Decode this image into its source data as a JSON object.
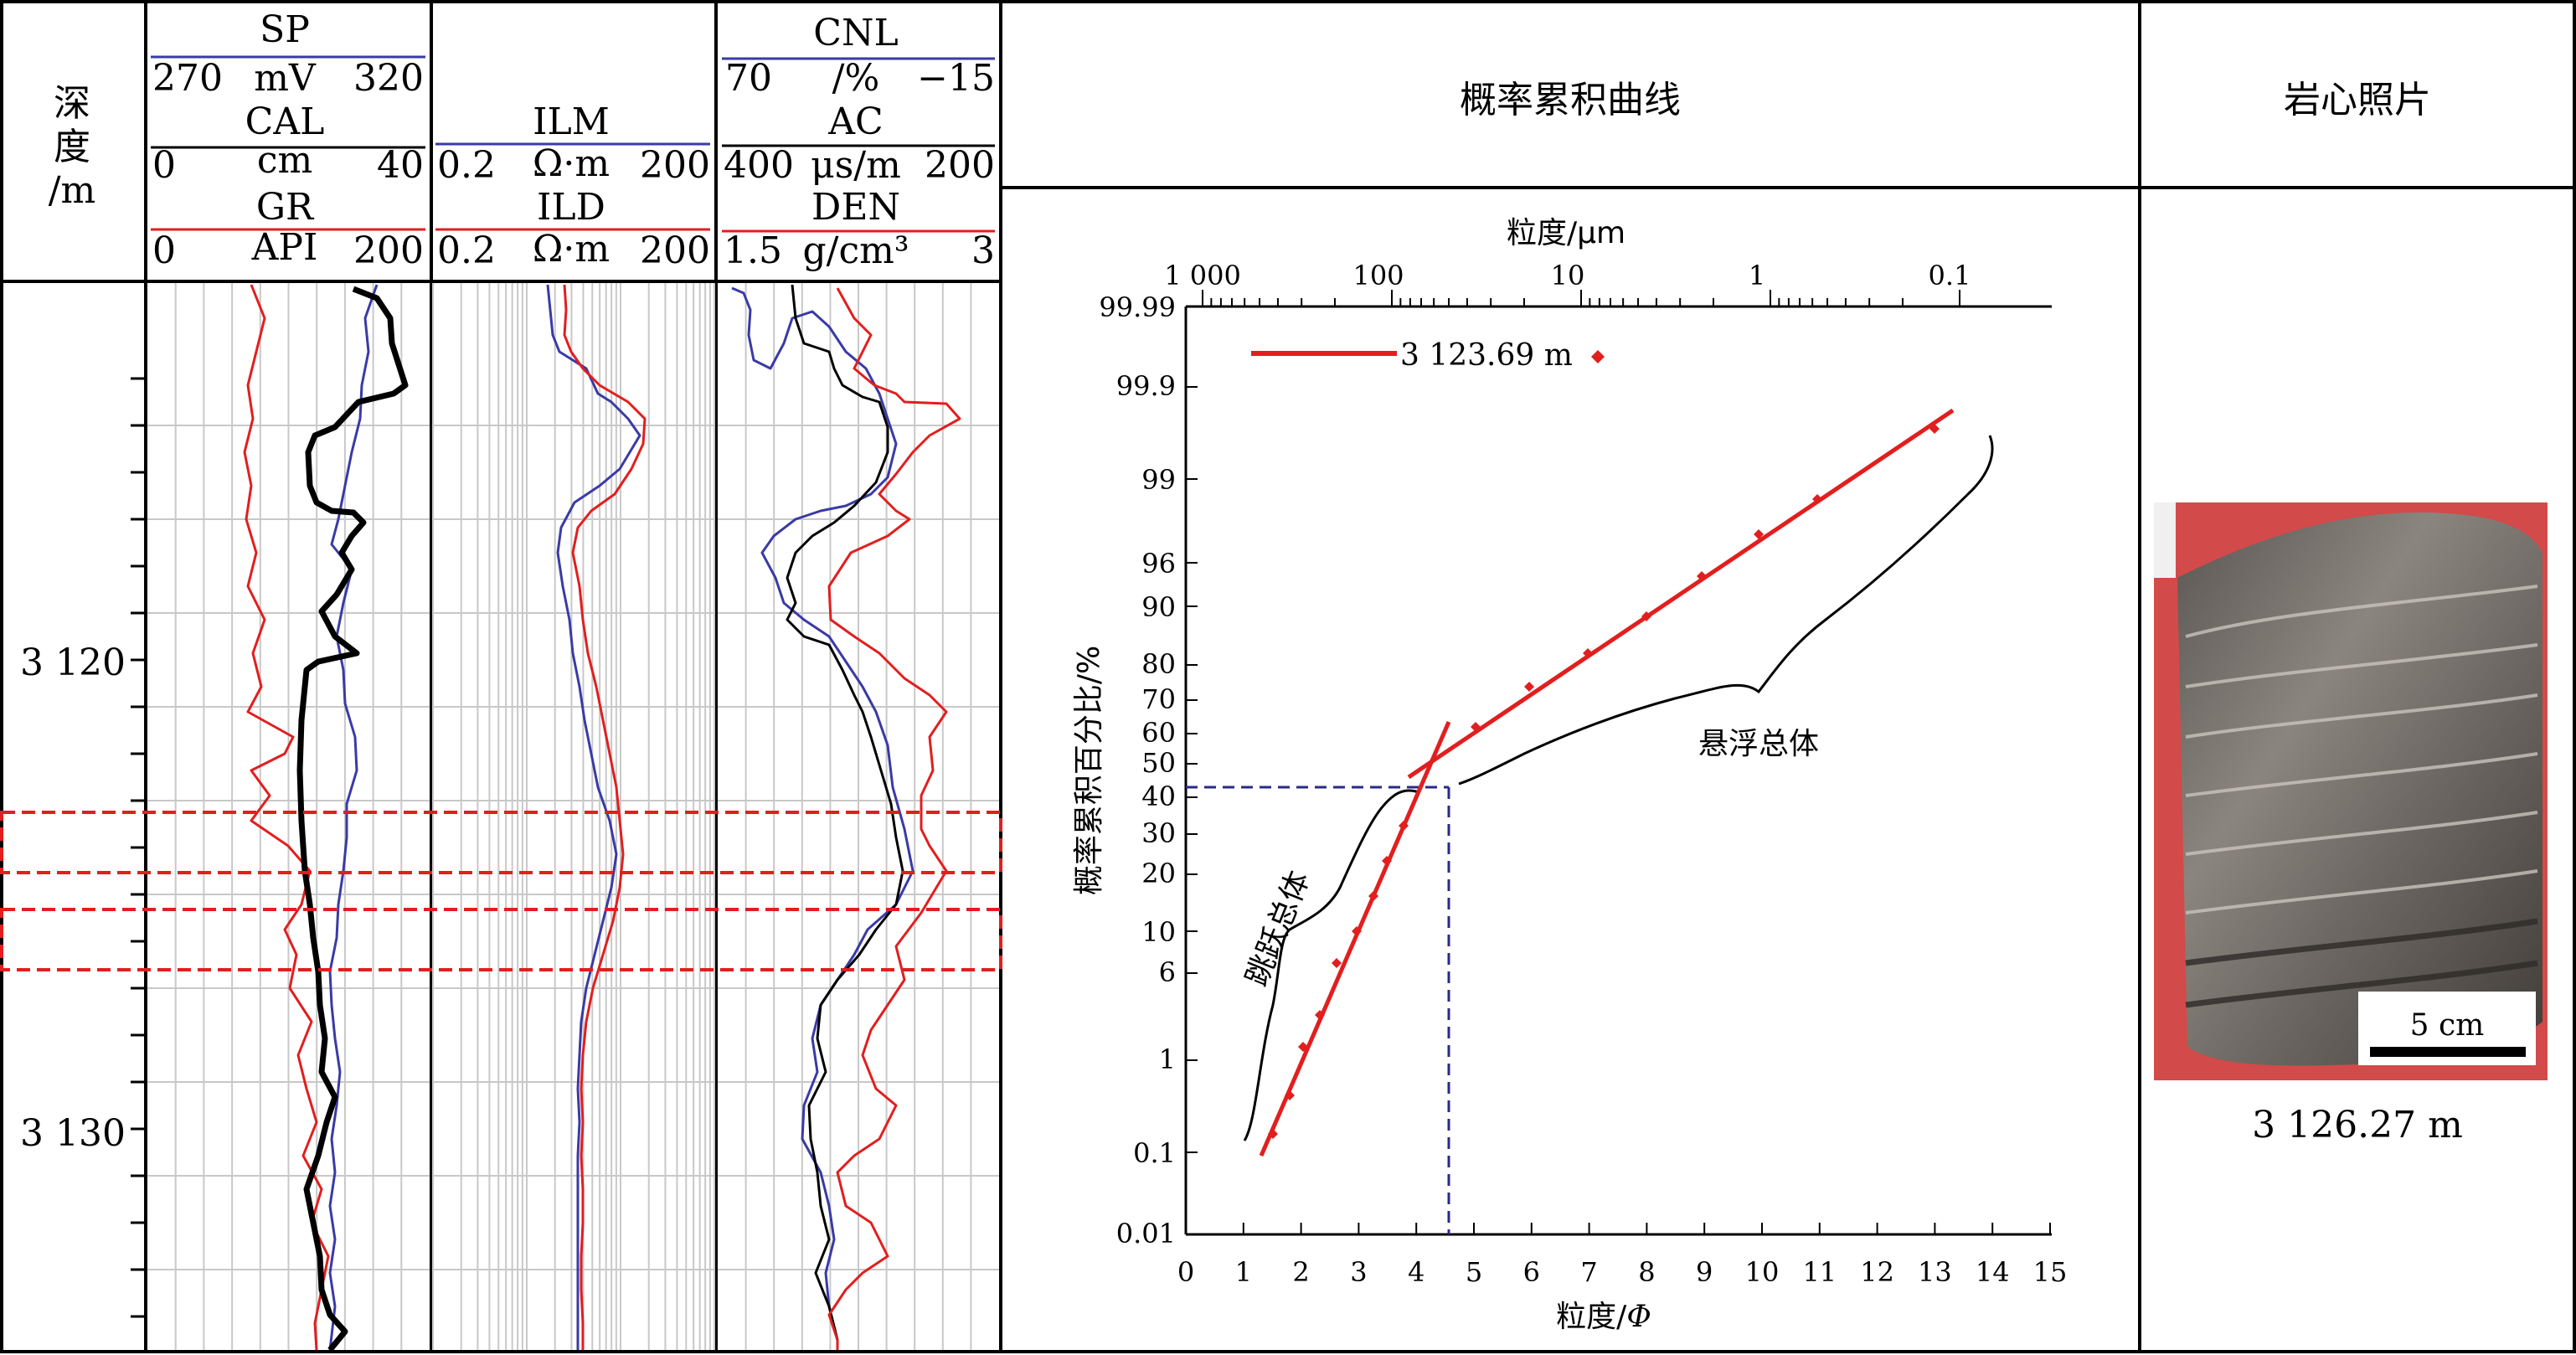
{
  "depth_header": {
    "line1": "深",
    "line2": "度",
    "line3": "/m"
  },
  "depth_labels": [
    "3 120",
    "3 130"
  ],
  "track1": {
    "sp": {
      "name": "SP",
      "min": "270",
      "unit": "mV",
      "max": "320",
      "color": "#3a3aa6"
    },
    "cal": {
      "name": "CAL",
      "min": "0",
      "unit": "cm",
      "max": "40",
      "color": "#000000"
    },
    "gr": {
      "name": "GR",
      "min": "0",
      "unit": "API",
      "max": "200",
      "color": "#e21e1e"
    }
  },
  "track2": {
    "ilm": {
      "name": "ILM",
      "min": "0.2",
      "unit": "Ω·m",
      "max": "200",
      "color": "#3a3aa6"
    },
    "ild": {
      "name": "ILD",
      "min": "0.2",
      "unit": "Ω·m",
      "max": "200",
      "color": "#e21e1e"
    }
  },
  "track3": {
    "cnl": {
      "name": "CNL",
      "min": "70",
      "unit": "/%",
      "max": "−15",
      "color": "#3a3aa6"
    },
    "ac": {
      "name": "AC",
      "min": "400",
      "unit": "μs/m",
      "max": "200",
      "color": "#000000"
    },
    "den": {
      "name": "DEN",
      "min": "1.5",
      "unit": "g/cm³",
      "max": "3",
      "color": "#e21e1e"
    }
  },
  "prob_panel": {
    "title": "概率累积曲线",
    "top_axis_label": "粒度/μm",
    "top_ticks": [
      "1 000",
      "100",
      "10",
      "1",
      "0.1"
    ],
    "left_axis_label": "概率累积百分比/%",
    "left_ticks": [
      "99.99",
      "99.9",
      "99",
      "96",
      "90",
      "80",
      "70",
      "60",
      "50",
      "40",
      "30",
      "20",
      "10",
      "6",
      "1",
      "0.1",
      "0.01"
    ],
    "bottom_axis_label": "粒度/",
    "bottom_axis_symbol": "Φ",
    "bottom_ticks": [
      "0",
      "1",
      "2",
      "3",
      "4",
      "5",
      "6",
      "7",
      "8",
      "9",
      "10",
      "11",
      "12",
      "13",
      "14",
      "15"
    ],
    "legend_label": "3 123.69 m",
    "annotation_saltation": "跳跃总体",
    "annotation_suspension": "悬浮总体",
    "line_color": "#e21e1e",
    "guide_color": "#2a2a8a"
  },
  "core_panel": {
    "title": "岩心照片",
    "scale_label": "5 cm",
    "depth_caption": "3 126.27 m"
  },
  "highlight_color": "#e21e1e"
}
